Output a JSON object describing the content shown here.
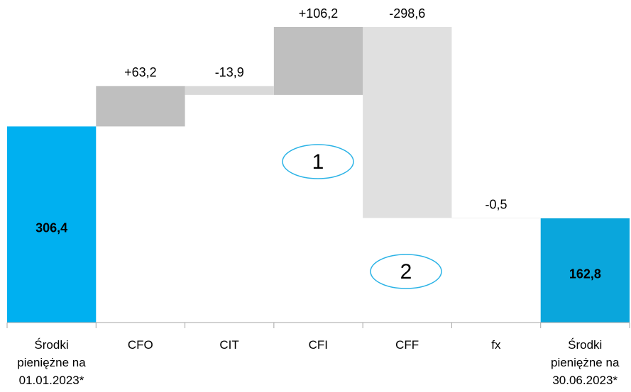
{
  "chart_data": {
    "type": "waterfall",
    "categories": [
      "Środki pieniężne na 01.01.2023*",
      "CFO",
      "CIT",
      "CFI",
      "CFF",
      "fx",
      "Środki pieniężne na 30.06.2023*"
    ],
    "values": [
      306.4,
      63.2,
      -13.9,
      106.2,
      -298.6,
      -0.5,
      162.8
    ],
    "value_labels": [
      "306,4",
      "+63,2",
      "-13,9",
      "+106,2",
      "-298,6",
      "-0,5",
      "162,8"
    ],
    "bar_kinds": [
      "total",
      "delta",
      "delta",
      "delta",
      "delta",
      "delta",
      "total"
    ],
    "colors": [
      "#00b0f0",
      "#bfbfbf",
      "#d9d9d9",
      "#bfbfbf",
      "#e0e0e0",
      "#e0e0e0",
      "#0aa6dc"
    ],
    "annotations": [
      "1",
      "2"
    ]
  }
}
